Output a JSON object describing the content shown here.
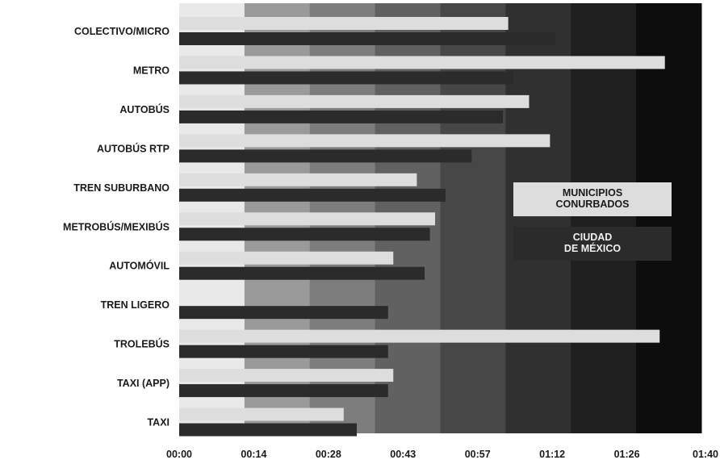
{
  "chart_data": {
    "type": "bar",
    "orientation": "horizontal",
    "categories": [
      "COLECTIVO/MICRO",
      "METRO",
      "AUTOBÚS",
      "AUTOBÚS RTP",
      "TREN SUBURBANO",
      "METROBÚS/MEXIBÚS",
      "AUTOMÓVIL",
      "TREN LIGERO",
      "TROLEBÚS",
      "TAXI (APP)",
      "TAXI"
    ],
    "series": [
      {
        "name": "MUNICIPIOS CONURBADOS",
        "color": "#dddddd",
        "values_minutes": [
          63,
          93,
          67,
          71,
          45.5,
          49,
          41,
          null,
          92,
          41,
          31.5
        ]
      },
      {
        "name": "CIUDAD DE MÉXICO",
        "color": "#2b2b2b",
        "values_minutes": [
          72,
          64,
          62,
          56,
          51,
          48,
          47,
          40,
          40,
          40,
          34
        ]
      }
    ],
    "x_ticks": [
      "00:00",
      "00:14",
      "00:28",
      "00:43",
      "00:57",
      "01:12",
      "01:26",
      "01:40"
    ],
    "x_range_minutes": [
      0,
      100
    ],
    "background_band_colors": [
      "#e9e9e9",
      "#9a9a9a",
      "#7d7d7d",
      "#616161",
      "#474747",
      "#303030",
      "#1f1f1f",
      "#0d0d0d"
    ],
    "legend": {
      "placement": "center-right",
      "items": [
        {
          "label_lines": [
            "MUNICIPIOS",
            "CONURBADOS"
          ],
          "color": "#dddddd",
          "text_color": "#1a1a1a"
        },
        {
          "label_lines": [
            "CIUDAD",
            "DE MÉXICO"
          ],
          "color": "#2b2b2b",
          "text_color": "#f0f0f0"
        }
      ]
    },
    "title": "",
    "xlabel": "",
    "ylabel": ""
  }
}
